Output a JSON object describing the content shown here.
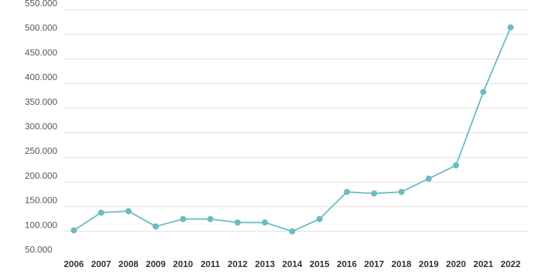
{
  "chart_data": {
    "type": "line",
    "title": "",
    "xlabel": "",
    "ylabel": "",
    "categories": [
      "2006",
      "2007",
      "2008",
      "2009",
      "2010",
      "2011",
      "2012",
      "2013",
      "2014",
      "2015",
      "2016",
      "2017",
      "2018",
      "2019",
      "2020",
      "2021",
      "2022"
    ],
    "series": [
      {
        "values": [
          102000,
          138000,
          141000,
          110000,
          125000,
          125000,
          118000,
          118000,
          100000,
          125000,
          180000,
          177000,
          180000,
          207000,
          234000,
          383000,
          514000
        ],
        "color": "#6bbcc0"
      }
    ],
    "ylim": [
      50000,
      550000
    ],
    "yticks": [
      50000,
      100000,
      150000,
      200000,
      250000,
      300000,
      350000,
      400000,
      450000,
      500000,
      550000
    ],
    "ytick_labels": [
      "50.000",
      "100.000",
      "150.000",
      "200.000",
      "250.000",
      "300.000",
      "350.000",
      "400.000",
      "450.000",
      "500.000",
      "550.000"
    ],
    "grid": true,
    "legend": "none"
  }
}
